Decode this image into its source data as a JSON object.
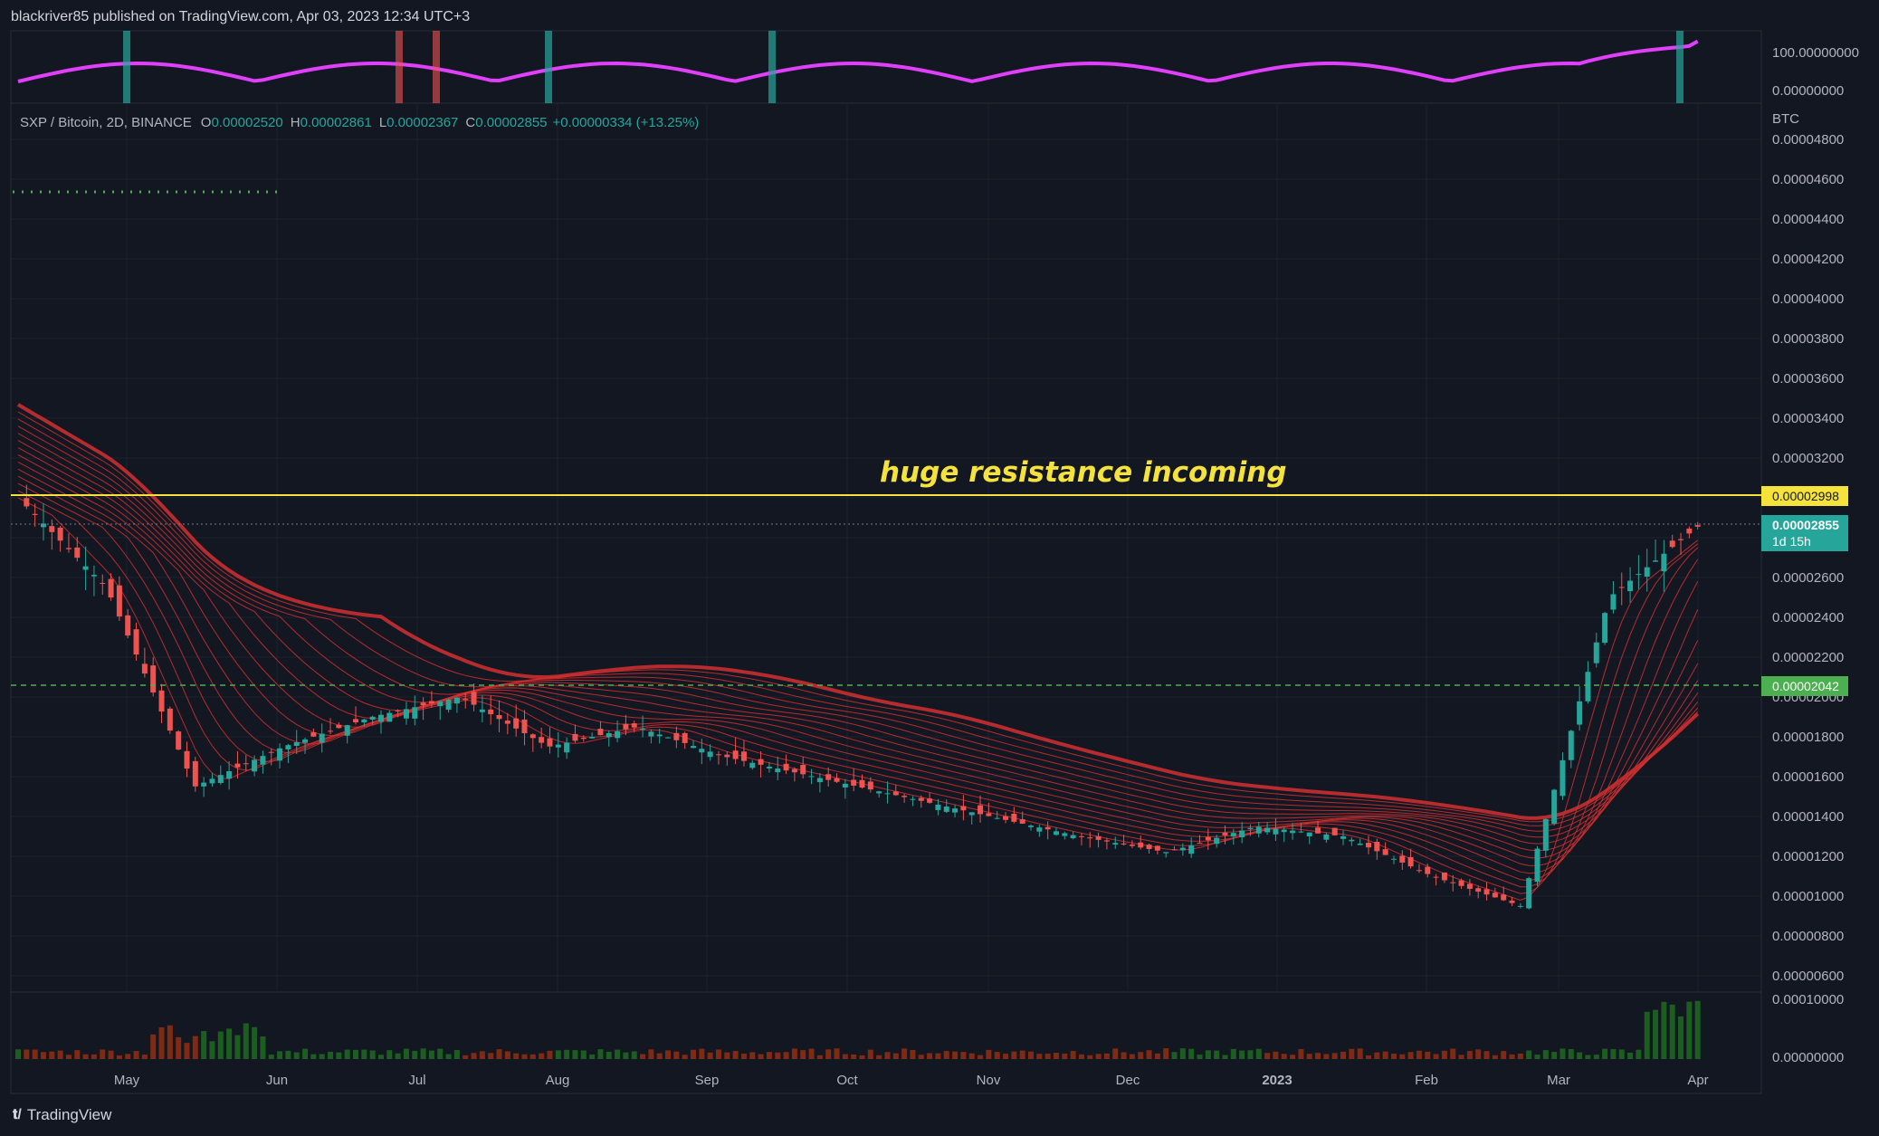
{
  "header": {
    "publish_line": "blackriver85 published on TradingView.com, Apr 03, 2023 12:34 UTC+3"
  },
  "legend": {
    "symbol": "SXP / Bitcoin, 2D, BINANCE",
    "o_label": "O",
    "o_value": "0.00002520",
    "h_label": "H",
    "h_value": "0.00002861",
    "l_label": "L",
    "l_value": "0.00002367",
    "c_label": "C",
    "c_value": "0.00002855",
    "change": "+0.00000334 (+13.25%)"
  },
  "annotation": {
    "text": "huge resistance incoming"
  },
  "price_axis": {
    "currency": "BTC",
    "ticks": [
      "0.00004800",
      "0.00004600",
      "0.00004400",
      "0.00004200",
      "0.00004000",
      "0.00003800",
      "0.00003600",
      "0.00003400",
      "0.00003200",
      "0.00003000",
      "0.00002800",
      "0.00002600",
      "0.00002400",
      "0.00002200",
      "0.00002000",
      "0.00001800",
      "0.00001600",
      "0.00001400",
      "0.00001200",
      "0.00001000",
      "0.00000800",
      "0.00000600"
    ],
    "resistance_label": "0.00002998",
    "last_price_label": "0.00002855",
    "countdown_label": "1d 15h",
    "support_label": "0.00002042"
  },
  "oscillator_axis": {
    "ticks": [
      "100.00000000",
      "0.00000000"
    ]
  },
  "volume_axis": {
    "ticks": [
      "0.00010000",
      "0.00000000"
    ]
  },
  "time_axis": {
    "ticks": [
      "May",
      "Jun",
      "Jul",
      "Aug",
      "Sep",
      "Oct",
      "Nov",
      "Dec",
      "2023",
      "Feb",
      "Mar",
      "Apr"
    ]
  },
  "footer": {
    "brand": "TradingView"
  },
  "colors": {
    "background": "#131722",
    "up": "#26a69a",
    "down": "#ef5350",
    "resistance": "#f5e33b",
    "support": "#4caf50",
    "ribbon": "#d32f2f",
    "oscillator": "#e040fb",
    "annotation": "#f5e33b"
  },
  "chart_data": {
    "type": "candlestick",
    "title": "SXP / Bitcoin, 2D, BINANCE",
    "xlabel": "",
    "ylabel": "BTC",
    "ylim": [
      5e-06,
      4.9e-05
    ],
    "resistance_level": 2.998e-05,
    "support_level": 2.042e-05,
    "last_close": 2.855e-05,
    "x": [
      "May",
      "Jun",
      "Jul",
      "Aug",
      "Sep",
      "Oct",
      "Nov",
      "Dec",
      "2023",
      "Feb",
      "Mar",
      "Apr"
    ],
    "close_series": [
      3e-05,
      2.55e-05,
      1.55e-05,
      1.75e-05,
      1.9e-05,
      2e-05,
      1.75e-05,
      1.85e-05,
      1.7e-05,
      1.6e-05,
      1.5e-05,
      1.4e-05,
      1.3e-05,
      1.22e-05,
      1.35e-05,
      1.3e-05,
      1.1e-05,
      9.5e-06,
      2.5e-05,
      2.855e-05
    ],
    "grid": true,
    "legend": "top-left"
  }
}
